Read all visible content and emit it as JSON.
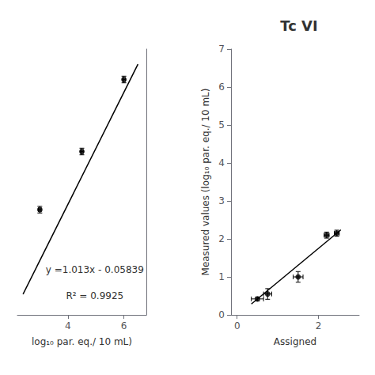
{
  "chart_data": [
    {
      "type": "scatter",
      "xlabel": "log₁₀ par. eq./ 10 mL)",
      "xlim": [
        2.2,
        6.8
      ],
      "ylim": [
        2.0,
        6.8
      ],
      "xticks": [
        4,
        6
      ],
      "yticks": [],
      "tick_labels": "x",
      "grid": false,
      "annotations": [
        "y =1.013x - 0.05839",
        "R² = 0.9925"
      ],
      "series": [
        {
          "type": "line",
          "x": [
            2.4,
            6.5
          ],
          "values": [
            2.37281,
            6.52611
          ],
          "color": "#000000"
        },
        {
          "type": "scatter",
          "marker": "circle",
          "color": "#000000",
          "x": [
            3.0,
            4.5,
            6.0
          ],
          "values": [
            3.9,
            4.95,
            6.25
          ],
          "x_err": [
            0.05,
            0.05,
            0.05
          ],
          "y_err": [
            0.06,
            0.06,
            0.06
          ]
        }
      ]
    },
    {
      "type": "scatter",
      "title": "Tc VI",
      "xlabel": "Assigned",
      "ylabel": "Measured values (log₁₀ par. eq./ 10 mL)",
      "xlim": [
        -0.15,
        3.0
      ],
      "ylim": [
        0,
        7
      ],
      "xticks": [
        0,
        2
      ],
      "yticks": [
        0,
        1,
        2,
        3,
        4,
        5,
        6,
        7
      ],
      "grid": false,
      "series": [
        {
          "type": "line",
          "x": [
            0.35,
            2.55
          ],
          "values": [
            0.2869230769,
            2.2387179487
          ],
          "color": "#000000"
        },
        {
          "type": "scatter",
          "marker": "circle",
          "color": "#000000",
          "x": [
            0.5,
            0.75,
            1.5,
            2.2,
            2.45
          ],
          "values": [
            0.42,
            0.55,
            1.0,
            2.1,
            2.15
          ],
          "x_err": [
            0.15,
            0.1,
            0.12,
            0.06,
            0.06
          ],
          "y_err": [
            0.05,
            0.14,
            0.14,
            0.08,
            0.08
          ]
        }
      ]
    }
  ]
}
